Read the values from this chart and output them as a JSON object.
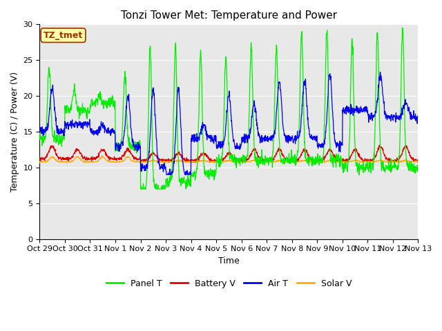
{
  "title": "Tonzi Tower Met: Temperature and Power",
  "ylabel": "Temperature (C) / Power (V)",
  "xlabel": "Time",
  "ylim": [
    0,
    30
  ],
  "yticks": [
    0,
    5,
    10,
    15,
    20,
    25,
    30
  ],
  "xtick_labels": [
    "Oct 29",
    "Oct 30",
    "Oct 31",
    "Nov 1",
    "Nov 2",
    "Nov 3",
    "Nov 4",
    "Nov 5",
    "Nov 6",
    "Nov 7",
    "Nov 8",
    "Nov 9",
    "Nov 10",
    "Nov 11",
    "Nov 12",
    "Nov 13"
  ],
  "colors": {
    "panel_t": "#00ee00",
    "battery_v": "#dd0000",
    "air_t": "#0000ee",
    "solar_v": "#ffaa00"
  },
  "legend_labels": [
    "Panel T",
    "Battery V",
    "Air T",
    "Solar V"
  ],
  "annotation_text": "TZ_tmet",
  "annotation_bg": "#ffffaa",
  "annotation_border": "#993300",
  "bg_color": "#e8e8e8",
  "figure_bg": "#ffffff",
  "title_fontsize": 11,
  "axis_fontsize": 9,
  "tick_fontsize": 8,
  "legend_fontsize": 9
}
